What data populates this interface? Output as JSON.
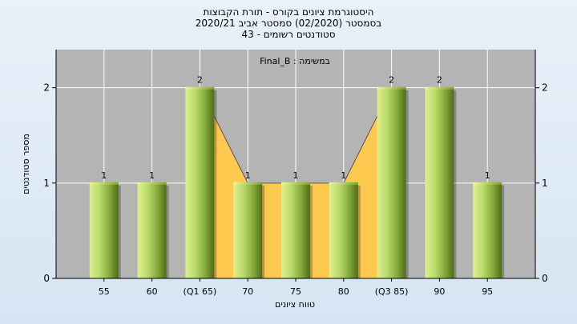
{
  "chart_data": {
    "type": "bar",
    "title_lines": [
      "היסטוגרמת ציונים בקורס - תורת הקבוצות",
      "בסמסטר  (02/2020)  סמסטר אביב 2020/21",
      "סטודנטים רשומים - 43"
    ],
    "legend": "במשימה : Final_B",
    "categories": [
      "55",
      "60",
      "(Q1 65)",
      "70",
      "75",
      "80",
      "(Q3 85)",
      "90",
      "95"
    ],
    "values": [
      1,
      1,
      2,
      1,
      1,
      1,
      2,
      2,
      1
    ],
    "data_labels": [
      "1",
      "1",
      "2",
      "1",
      "1",
      "1",
      "2",
      "2",
      "1"
    ],
    "ylim": [
      0,
      2.4
    ],
    "y_ticks": [
      "0",
      "1",
      "2"
    ],
    "xlabel": "טווח ציונים",
    "ylabel": "מספר סטודנטים",
    "interquartile_range": [
      "(Q1 65)",
      "(Q3 85)"
    ],
    "grid": true,
    "colors": {
      "plot_bg": "#b4b4b4",
      "bar_light": "#dff08f",
      "bar_mid": "#9cc24a",
      "bar_dark": "#4f6b18",
      "area": "#ffc94f",
      "grid": "#ffffff"
    }
  }
}
